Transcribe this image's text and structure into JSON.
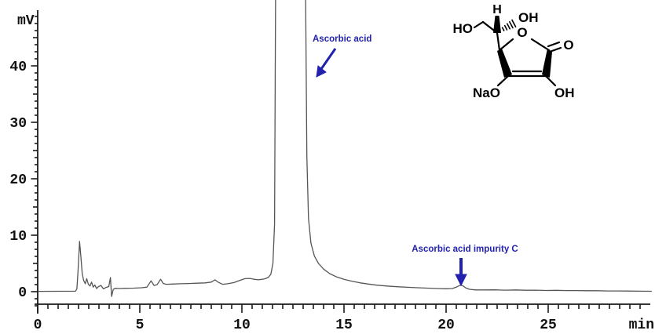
{
  "chart_data": {
    "type": "line",
    "subtype": "HPLC chromatogram",
    "title": "",
    "xlabel": "min",
    "ylabel": "mV",
    "x_axis": {
      "unit": "min",
      "range": [
        0,
        30
      ],
      "minor_step_min": 0.5,
      "major_step_min": 5,
      "tick_labels": [
        "0",
        "5",
        "10",
        "15",
        "20",
        "25"
      ]
    },
    "y_axis": {
      "unit": "mV",
      "range": [
        -2.5,
        50
      ],
      "minor_step_mv": 1.25,
      "major_step_mv": 10,
      "tick_labels": [
        "0",
        "10",
        "20",
        "30",
        "40"
      ]
    },
    "grid": false,
    "legend": "none",
    "colors": {
      "trace": "#555555",
      "axis": "#1a1a1a",
      "annotation_blue": "#2222ae"
    },
    "peaks": [
      {
        "name": "injection/solvent front",
        "retention_min": 2.05,
        "height_mv": 8.9
      },
      {
        "name": "Ascorbic acid",
        "retention_min": 12.4,
        "height_mv": "off-scale (>50, clipped at top)"
      },
      {
        "name": "Ascorbic acid impurity C",
        "retention_min": 20.8,
        "height_mv": 1.1
      }
    ],
    "annotations": [
      {
        "text": "Ascorbic acid",
        "arrow": "diagonal down-left",
        "points_to_min": 13.7
      },
      {
        "text": "Ascorbic acid impurity C",
        "arrow": "vertical down",
        "points_to_min": 20.8
      }
    ],
    "trace": [
      [
        0.05,
        0.05
      ],
      [
        1.0,
        0.07
      ],
      [
        1.85,
        0.08
      ],
      [
        1.92,
        0.5
      ],
      [
        1.98,
        4.0
      ],
      [
        2.05,
        8.9
      ],
      [
        2.12,
        6.0
      ],
      [
        2.18,
        3.2
      ],
      [
        2.25,
        2.0
      ],
      [
        2.33,
        1.4
      ],
      [
        2.4,
        2.3
      ],
      [
        2.48,
        1.3
      ],
      [
        2.56,
        1.0
      ],
      [
        2.64,
        1.7
      ],
      [
        2.72,
        0.8
      ],
      [
        2.8,
        1.2
      ],
      [
        2.88,
        0.55
      ],
      [
        2.98,
        0.9
      ],
      [
        3.1,
        1.1
      ],
      [
        3.22,
        0.5
      ],
      [
        3.35,
        0.75
      ],
      [
        3.48,
        0.9
      ],
      [
        3.56,
        2.5
      ],
      [
        3.62,
        -0.85
      ],
      [
        3.7,
        0.4
      ],
      [
        3.8,
        0.6
      ],
      [
        4.0,
        0.55
      ],
      [
        4.3,
        0.6
      ],
      [
        4.7,
        0.62
      ],
      [
        5.1,
        0.7
      ],
      [
        5.35,
        0.8
      ],
      [
        5.55,
        1.9
      ],
      [
        5.7,
        1.1
      ],
      [
        5.85,
        1.25
      ],
      [
        6.02,
        2.2
      ],
      [
        6.15,
        1.45
      ],
      [
        6.3,
        1.3
      ],
      [
        6.6,
        1.35
      ],
      [
        7.0,
        1.4
      ],
      [
        7.4,
        1.45
      ],
      [
        7.8,
        1.5
      ],
      [
        8.2,
        1.55
      ],
      [
        8.5,
        1.7
      ],
      [
        8.68,
        2.1
      ],
      [
        8.85,
        1.65
      ],
      [
        9.05,
        1.3
      ],
      [
        9.3,
        1.4
      ],
      [
        9.6,
        1.6
      ],
      [
        9.9,
        2.0
      ],
      [
        10.15,
        2.3
      ],
      [
        10.4,
        2.35
      ],
      [
        10.6,
        2.2
      ],
      [
        10.8,
        2.1
      ],
      [
        11.0,
        2.2
      ],
      [
        11.15,
        2.3
      ],
      [
        11.3,
        2.55
      ],
      [
        11.42,
        3.1
      ],
      [
        11.52,
        5.0
      ],
      [
        11.6,
        12.0
      ],
      [
        11.65,
        53.0
      ],
      [
        13.12,
        53.0
      ],
      [
        13.18,
        24.0
      ],
      [
        13.26,
        13.0
      ],
      [
        13.38,
        8.6
      ],
      [
        13.55,
        6.3
      ],
      [
        13.75,
        5.0
      ],
      [
        14.0,
        4.0
      ],
      [
        14.3,
        3.2
      ],
      [
        14.65,
        2.6
      ],
      [
        15.0,
        2.2
      ],
      [
        15.4,
        1.85
      ],
      [
        15.8,
        1.55
      ],
      [
        16.2,
        1.35
      ],
      [
        16.6,
        1.15
      ],
      [
        17.1,
        1.0
      ],
      [
        17.6,
        0.88
      ],
      [
        18.1,
        0.78
      ],
      [
        18.6,
        0.7
      ],
      [
        19.1,
        0.62
      ],
      [
        19.6,
        0.56
      ],
      [
        20.0,
        0.52
      ],
      [
        20.3,
        0.56
      ],
      [
        20.5,
        0.8
      ],
      [
        20.68,
        1.12
      ],
      [
        20.8,
        1.1
      ],
      [
        20.95,
        0.7
      ],
      [
        21.15,
        0.42
      ],
      [
        21.45,
        0.3
      ],
      [
        21.9,
        0.3
      ],
      [
        22.4,
        0.32
      ],
      [
        22.9,
        0.27
      ],
      [
        23.4,
        0.3
      ],
      [
        23.9,
        0.25
      ],
      [
        24.4,
        0.27
      ],
      [
        24.9,
        0.21
      ],
      [
        25.4,
        0.23
      ],
      [
        25.9,
        0.19
      ],
      [
        26.4,
        0.2
      ],
      [
        26.9,
        0.16
      ],
      [
        27.4,
        0.17
      ],
      [
        27.9,
        0.13
      ],
      [
        28.4,
        0.13
      ],
      [
        28.9,
        0.11
      ],
      [
        29.4,
        0.09
      ],
      [
        30.05,
        0.07
      ]
    ]
  },
  "structure": {
    "compound": "sodium ascorbate (ascorbic acid sodium salt)",
    "labels": {
      "h_top": "H",
      "oh_chain": "OH",
      "ho_chain": "HO",
      "o_ring": "O",
      "o_carbonyl": "O",
      "nao": "NaO",
      "oh_bottom": "OH"
    }
  }
}
